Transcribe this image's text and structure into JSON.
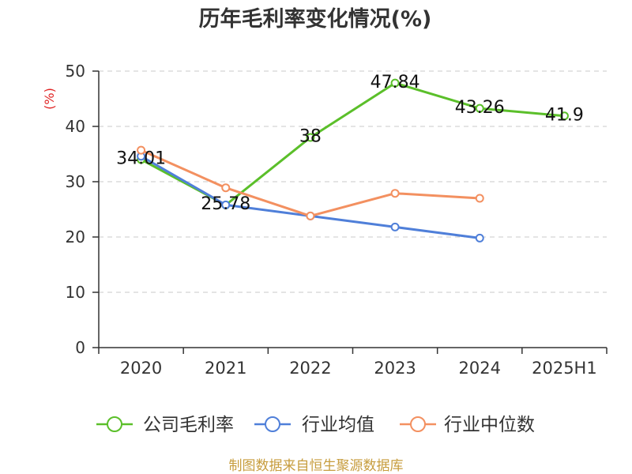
{
  "source_note": "制图数据来自恒生聚源数据库",
  "colors": {
    "axis": "#333333",
    "grid": "#c8c8c8",
    "ylabel": "#e02424",
    "footer": "#c79d3e",
    "data_label": "#111111"
  },
  "chart_data": {
    "type": "line",
    "title": "历年毛利率变化情况(%)",
    "ylabel": "(%)",
    "categories": [
      "2020",
      "2021",
      "2022",
      "2023",
      "2024",
      "2025H1"
    ],
    "ylim": [
      0,
      50
    ],
    "yticks": [
      0,
      10,
      20,
      30,
      40,
      50
    ],
    "grid": true,
    "legend": "bottom",
    "series": [
      {
        "name": "公司毛利率",
        "color": "#5bbf2a",
        "data_labels": true,
        "values": [
          34.01,
          25.78,
          38,
          47.84,
          43.26,
          41.9
        ]
      },
      {
        "name": "行业均值",
        "color": "#4f7fd9",
        "data_labels": false,
        "values": [
          34.6,
          25.8,
          23.8,
          21.8,
          19.8,
          null
        ]
      },
      {
        "name": "行业中位数",
        "color": "#f39060",
        "data_labels": false,
        "values": [
          35.7,
          28.9,
          23.8,
          27.9,
          27.0,
          null
        ]
      }
    ]
  }
}
